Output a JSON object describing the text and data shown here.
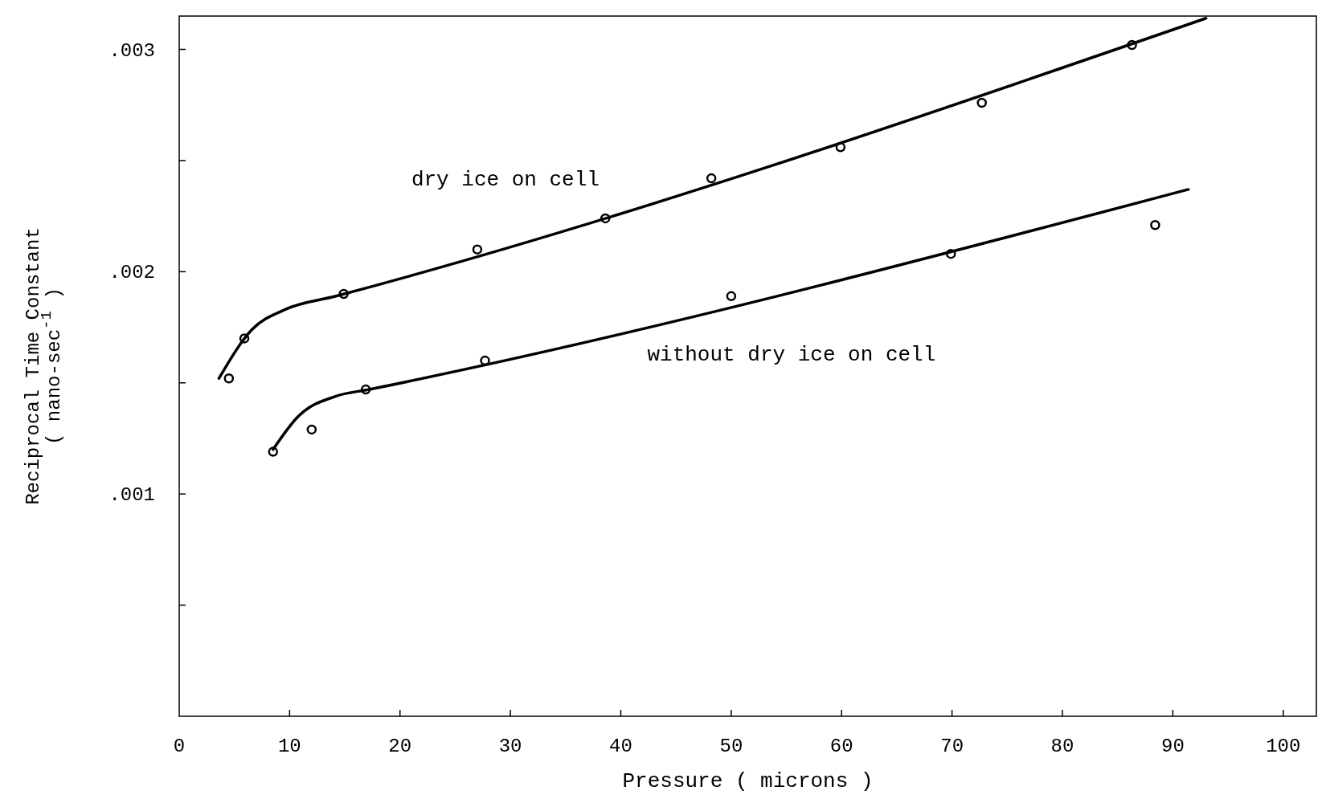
{
  "chart_data": {
    "type": "scatter",
    "xlabel": "Pressure ( microns )",
    "ylabel": "Reciprocal Time Constant\n( nano-sec$^{-1}$ )",
    "xlim": [
      0,
      103
    ],
    "ylim": [
      0,
      0.00315
    ],
    "xticks": [
      0,
      10,
      20,
      30,
      40,
      50,
      60,
      70,
      80,
      90,
      100
    ],
    "yticks": [
      {
        "value": 0.0005,
        "label": null
      },
      {
        "value": 0.001,
        "label": ".001"
      },
      {
        "value": 0.0015,
        "label": null
      },
      {
        "value": 0.002,
        "label": ".002"
      },
      {
        "value": 0.0025,
        "label": null
      },
      {
        "value": 0.003,
        "label": ".003"
      }
    ],
    "grid": false,
    "marker": "circle",
    "series": [
      {
        "color": "#000000",
        "x": [
          4.5,
          5.9,
          14.9,
          27.0,
          38.6,
          48.2,
          59.9,
          72.7,
          86.3
        ],
        "values": [
          0.00152,
          0.0017,
          0.0019,
          0.0021,
          0.00224,
          0.00242,
          0.00256,
          0.00276,
          0.00302
        ]
      },
      {
        "color": "#000000",
        "x": [
          8.5,
          12.0,
          16.9,
          27.7,
          50.0,
          69.9,
          88.4
        ],
        "values": [
          0.00119,
          0.00129,
          0.00147,
          0.0016,
          0.00189,
          0.00208,
          0.00221
        ]
      },
      {
        "type": "line",
        "color": "#000000",
        "marker": "none",
        "line_style": "solid",
        "x": [
          3.6,
          6.6,
          9.6,
          14.2,
          93
        ],
        "values": [
          0.00152,
          0.00174,
          0.00183,
          0.00189,
          0.00314
        ]
      },
      {
        "type": "line",
        "color": "#000000",
        "marker": "none",
        "line_style": "solid",
        "x": [
          8.5,
          10.8,
          14.2,
          17.2,
          91.4
        ],
        "values": [
          0.0012,
          0.00135,
          0.00144,
          0.00147,
          0.00237
        ]
      }
    ],
    "annotations": [
      "dry ice on cell",
      "without dry ice on cell"
    ]
  }
}
